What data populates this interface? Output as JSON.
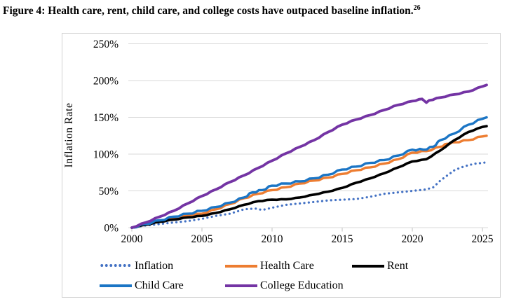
{
  "figure": {
    "title": "Figure 4: Health care, rent, child care, and college costs have outpaced baseline inflation.",
    "footnote_ref": "26"
  },
  "chart_data": {
    "type": "line",
    "title": "",
    "xlabel": "",
    "ylabel": "Inflation Rate",
    "xlim": [
      2000,
      2025.4
    ],
    "ylim": [
      0,
      250
    ],
    "x_ticks": [
      "2000",
      "2005",
      "2010",
      "2015",
      "2020",
      "2025"
    ],
    "y_ticks": [
      "0%",
      "50%",
      "100%",
      "150%",
      "200%",
      "250%"
    ],
    "y_tick_values": [
      0,
      50,
      100,
      150,
      200,
      250
    ],
    "grid": true,
    "grid_color": "#d9d9d9",
    "tick_color": "#bfbfbf",
    "legend_position": "bottom",
    "series": [
      {
        "name": "Inflation",
        "color": "#4472c4",
        "style": "dotted",
        "points": [
          [
            2000,
            0
          ],
          [
            2001,
            3
          ],
          [
            2002,
            5
          ],
          [
            2003,
            7
          ],
          [
            2004,
            9
          ],
          [
            2005,
            12
          ],
          [
            2006,
            16
          ],
          [
            2007,
            19
          ],
          [
            2008,
            25
          ],
          [
            2008.8,
            26
          ],
          [
            2009.3,
            24
          ],
          [
            2010,
            27
          ],
          [
            2011,
            31
          ],
          [
            2012,
            33
          ],
          [
            2013,
            35
          ],
          [
            2014,
            37
          ],
          [
            2015,
            38
          ],
          [
            2016,
            39
          ],
          [
            2017,
            42
          ],
          [
            2018,
            46
          ],
          [
            2019,
            48
          ],
          [
            2020,
            50
          ],
          [
            2021,
            52
          ],
          [
            2021.5,
            55
          ],
          [
            2022,
            64
          ],
          [
            2022.5,
            71
          ],
          [
            2023,
            78
          ],
          [
            2023.5,
            82
          ],
          [
            2024,
            85
          ],
          [
            2024.5,
            87
          ],
          [
            2025,
            88
          ],
          [
            2025.3,
            89
          ]
        ]
      },
      {
        "name": "Health Care",
        "color": "#ed7d31",
        "style": "solid",
        "points": [
          [
            2000,
            0
          ],
          [
            2001,
            5
          ],
          [
            2002,
            9
          ],
          [
            2003,
            13
          ],
          [
            2004,
            16
          ],
          [
            2005,
            19
          ],
          [
            2006,
            25
          ],
          [
            2007,
            32
          ],
          [
            2008,
            40
          ],
          [
            2009,
            46
          ],
          [
            2010,
            51
          ],
          [
            2011,
            55
          ],
          [
            2012,
            60
          ],
          [
            2013,
            64
          ],
          [
            2014,
            68
          ],
          [
            2015,
            73
          ],
          [
            2016,
            78
          ],
          [
            2017,
            82
          ],
          [
            2018,
            87
          ],
          [
            2019,
            93
          ],
          [
            2020,
            102
          ],
          [
            2021,
            104
          ],
          [
            2022,
            110
          ],
          [
            2022.5,
            114
          ],
          [
            2023,
            116
          ],
          [
            2024,
            119
          ],
          [
            2025,
            124
          ],
          [
            2025.3,
            125
          ]
        ]
      },
      {
        "name": "Rent",
        "color": "#000000",
        "style": "solid",
        "points": [
          [
            2000,
            0
          ],
          [
            2001,
            4
          ],
          [
            2002,
            8
          ],
          [
            2003,
            11
          ],
          [
            2004,
            14
          ],
          [
            2005,
            16
          ],
          [
            2006,
            20
          ],
          [
            2007,
            25
          ],
          [
            2008,
            31
          ],
          [
            2009,
            36
          ],
          [
            2010,
            38
          ],
          [
            2011,
            38.5
          ],
          [
            2012,
            41
          ],
          [
            2013,
            45
          ],
          [
            2014,
            49
          ],
          [
            2015,
            54
          ],
          [
            2016,
            61
          ],
          [
            2017,
            67
          ],
          [
            2018,
            74
          ],
          [
            2019,
            82
          ],
          [
            2020,
            90
          ],
          [
            2021,
            93
          ],
          [
            2022,
            105
          ],
          [
            2023,
            119
          ],
          [
            2024,
            130
          ],
          [
            2025,
            137
          ],
          [
            2025.3,
            138
          ]
        ]
      },
      {
        "name": "Child Care",
        "color": "#1b75c5",
        "style": "solid",
        "points": [
          [
            2000,
            0
          ],
          [
            2001,
            5
          ],
          [
            2002,
            10
          ],
          [
            2003,
            15
          ],
          [
            2004,
            19
          ],
          [
            2005,
            23
          ],
          [
            2006,
            28
          ],
          [
            2007,
            34
          ],
          [
            2008,
            41
          ],
          [
            2008.6,
            48
          ],
          [
            2009.3,
            51
          ],
          [
            2010,
            57
          ],
          [
            2011,
            60
          ],
          [
            2012,
            63
          ],
          [
            2013,
            67
          ],
          [
            2014,
            72
          ],
          [
            2015,
            79
          ],
          [
            2016,
            83
          ],
          [
            2017,
            88
          ],
          [
            2018,
            92
          ],
          [
            2019,
            98
          ],
          [
            2020,
            106
          ],
          [
            2020.8,
            106
          ],
          [
            2021.5,
            110
          ],
          [
            2022,
            119
          ],
          [
            2023,
            128
          ],
          [
            2024,
            140
          ],
          [
            2025,
            148
          ],
          [
            2025.3,
            150
          ]
        ]
      },
      {
        "name": "College Education",
        "color": "#7434a4",
        "style": "solid",
        "points": [
          [
            2000,
            0
          ],
          [
            2001,
            7
          ],
          [
            2002,
            15
          ],
          [
            2003,
            23
          ],
          [
            2004,
            33
          ],
          [
            2005,
            43
          ],
          [
            2006,
            52
          ],
          [
            2007,
            62
          ],
          [
            2008,
            71
          ],
          [
            2009,
            81
          ],
          [
            2010,
            91
          ],
          [
            2011,
            101
          ],
          [
            2012,
            110
          ],
          [
            2013,
            119
          ],
          [
            2014,
            130
          ],
          [
            2015,
            140
          ],
          [
            2016,
            147
          ],
          [
            2017,
            153
          ],
          [
            2018,
            160
          ],
          [
            2019,
            167
          ],
          [
            2020,
            172
          ],
          [
            2020.7,
            175
          ],
          [
            2021,
            170
          ],
          [
            2021.2,
            173
          ],
          [
            2022,
            177
          ],
          [
            2023,
            181
          ],
          [
            2024,
            185
          ],
          [
            2025,
            192
          ],
          [
            2025.3,
            194
          ]
        ]
      }
    ]
  }
}
